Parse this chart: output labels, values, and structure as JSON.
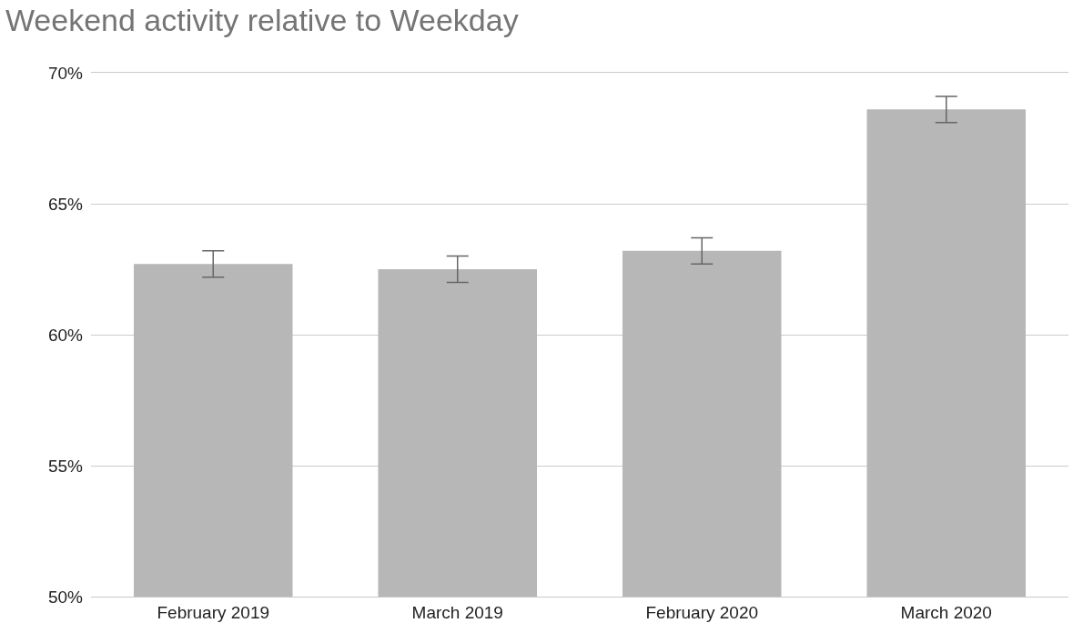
{
  "chart_data": {
    "type": "bar",
    "title": "Weekend activity relative to Weekday",
    "categories": [
      "February 2019",
      "March 2019",
      "February 2020",
      "March 2020"
    ],
    "values": [
      62.7,
      62.5,
      63.2,
      68.6
    ],
    "errors": [
      0.5,
      0.5,
      0.5,
      0.5
    ],
    "color": "#b7b7b7",
    "ylim": [
      50,
      70
    ],
    "yticks": [
      {
        "value": 50,
        "label": "50%"
      },
      {
        "value": 55,
        "label": "55%"
      },
      {
        "value": 60,
        "label": "60%"
      },
      {
        "value": 65,
        "label": "65%"
      },
      {
        "value": 70,
        "label": "70%"
      }
    ],
    "grid": "y"
  }
}
